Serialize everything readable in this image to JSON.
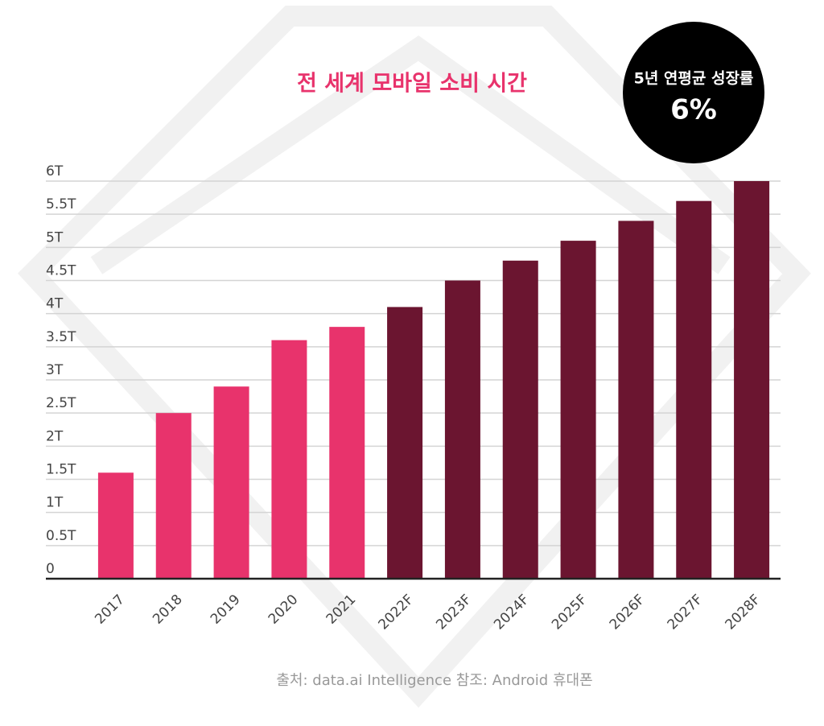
{
  "chart_data": {
    "type": "bar",
    "title": "전 세계 모바일 소비 시간",
    "badge_label": "5년 연평균 성장률",
    "badge_value": "6%",
    "source": "출처: data.ai Intelligence 참조: Android 휴대폰",
    "categories": [
      "2017",
      "2018",
      "2019",
      "2020",
      "2021",
      "2022F",
      "2023F",
      "2024F",
      "2025F",
      "2026F",
      "2027F",
      "2028F"
    ],
    "values": [
      1.6,
      2.5,
      2.9,
      3.6,
      3.8,
      4.1,
      4.5,
      4.8,
      5.1,
      5.4,
      5.7,
      6.0
    ],
    "colors": [
      "#e8336c",
      "#e8336c",
      "#e8336c",
      "#e8336c",
      "#e8336c",
      "#6b1530",
      "#6b1530",
      "#6b1530",
      "#6b1530",
      "#6b1530",
      "#6b1530",
      "#6b1530"
    ],
    "ylim": [
      0,
      6
    ],
    "yticks": [
      0,
      {
        "value": 0.5,
        "label": "0.5T"
      },
      {
        "value": 1,
        "label": "1T"
      },
      {
        "value": 1.5,
        "label": "1.5T"
      },
      {
        "value": 2,
        "label": "2T"
      },
      {
        "value": 2.5,
        "label": "2.5T"
      },
      {
        "value": 3,
        "label": "3T"
      },
      {
        "value": 3.5,
        "label": "3.5T"
      },
      {
        "value": 4,
        "label": "4T"
      },
      {
        "value": 4.5,
        "label": "4.5T"
      },
      {
        "value": 5,
        "label": "5T"
      },
      {
        "value": 5.5,
        "label": "5.5T"
      },
      {
        "value": 6,
        "label": "6T"
      }
    ],
    "grid": true
  }
}
